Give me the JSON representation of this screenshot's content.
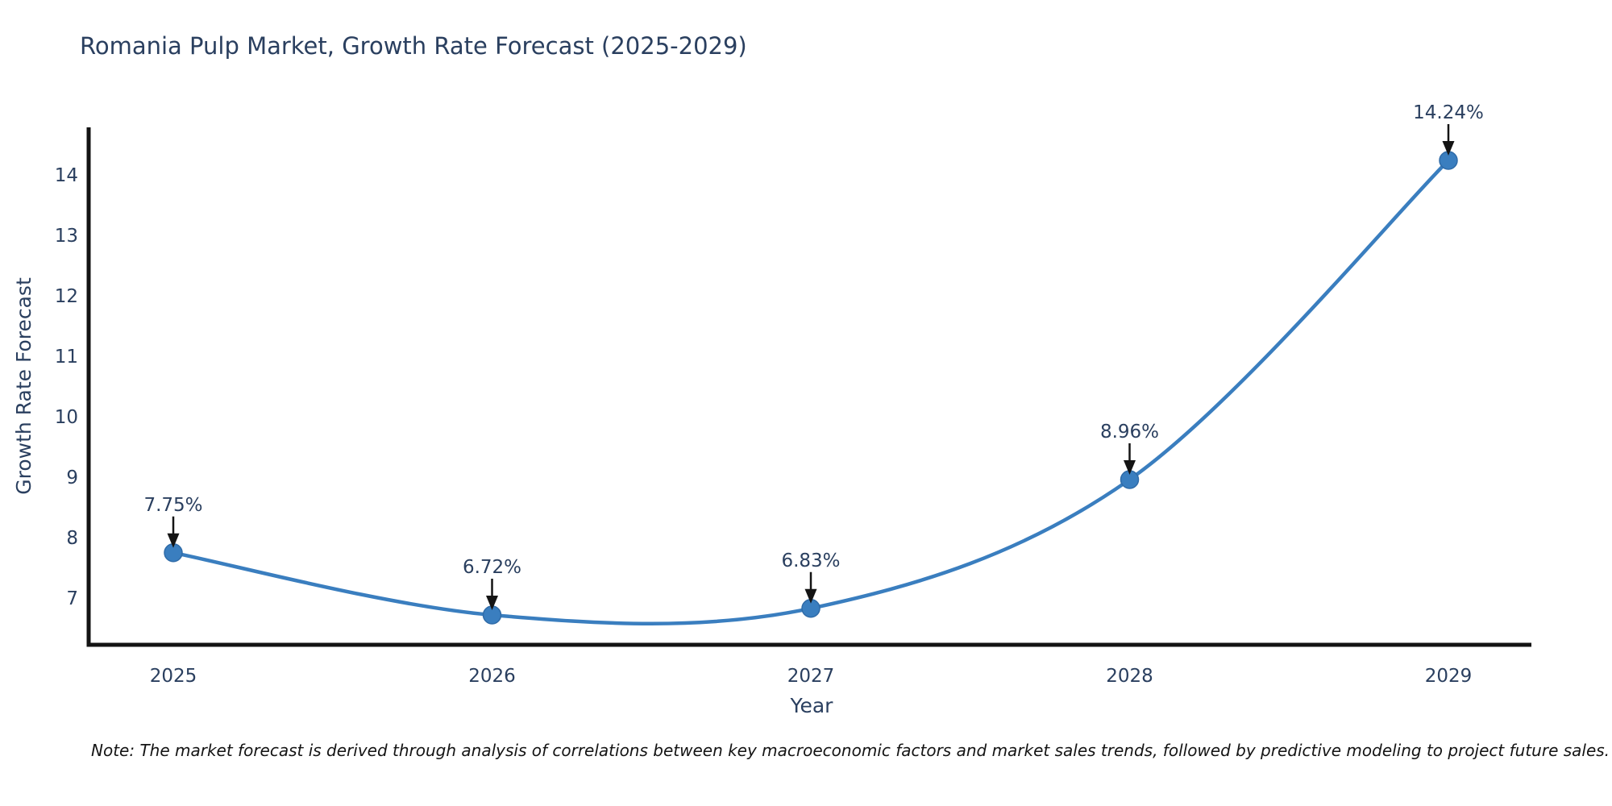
{
  "title": "Romania Pulp Market, Growth Rate Forecast (2025-2029)",
  "note": "Note: The market forecast is derived through analysis of correlations between key macroeconomic factors and market sales trends, followed by predictive modeling to project future sales.",
  "chart_data": {
    "type": "line",
    "line_shape": "spline",
    "title": "Romania Pulp Market, Growth Rate Forecast (2025-2029)",
    "xlabel": "Year",
    "ylabel": "Growth Rate Forecast",
    "categories": [
      "2025",
      "2026",
      "2027",
      "2028",
      "2029"
    ],
    "values": [
      7.75,
      6.72,
      6.83,
      8.96,
      14.24
    ],
    "point_labels": [
      "7.75%",
      "6.72%",
      "6.83%",
      "8.96%",
      "14.24%"
    ],
    "yticks": [
      7,
      8,
      9,
      10,
      11,
      12,
      13,
      14
    ],
    "ylim": [
      6.23,
      14.76
    ],
    "grid": false,
    "legend": "none",
    "markers": true,
    "annotations_arrow": "down-to-point",
    "colors": {
      "line": "#3a7ebf",
      "marker": "#3a7ebf",
      "marker_edge": "#2f6ba8",
      "axis": "#141414",
      "arrow": "#141414",
      "text": "#2a3f5f",
      "title": "#2a3f5f",
      "note": "#141414"
    }
  }
}
